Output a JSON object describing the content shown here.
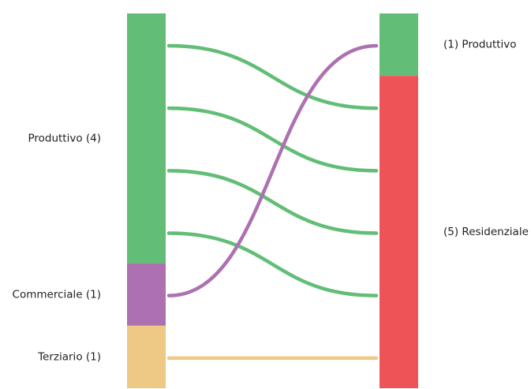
{
  "colors": {
    "produttivo": "#62bd76",
    "commerciale": "#ad71b1",
    "terziario": "#eec983",
    "residenziale": "#ee5357"
  },
  "left_nodes": [
    {
      "id": "produttivo",
      "label": "Produttivo (4)",
      "count": 4,
      "color": "#62bd76"
    },
    {
      "id": "commerciale",
      "label": "Commerciale (1)",
      "count": 1,
      "color": "#ad71b1"
    },
    {
      "id": "terziario",
      "label": "Terziario (1)",
      "count": 1,
      "color": "#eec983"
    }
  ],
  "right_nodes": [
    {
      "id": "produttivo",
      "label": "(1) Produttivo",
      "count": 1,
      "color": "#62bd76"
    },
    {
      "id": "residenziale",
      "label": "(5) Residenziale",
      "count": 5,
      "color": "#ee5357"
    }
  ],
  "links": [
    {
      "from": "produttivo",
      "to": "residenziale",
      "value": 1,
      "color": "#62bd76"
    },
    {
      "from": "produttivo",
      "to": "residenziale",
      "value": 1,
      "color": "#62bd76"
    },
    {
      "from": "produttivo",
      "to": "residenziale",
      "value": 1,
      "color": "#62bd76"
    },
    {
      "from": "produttivo",
      "to": "residenziale",
      "value": 1,
      "color": "#62bd76"
    },
    {
      "from": "commerciale",
      "to": "produttivo",
      "value": 1,
      "color": "#ad71b1"
    },
    {
      "from": "terziario",
      "to": "residenziale",
      "value": 1,
      "color": "#eec983"
    }
  ]
}
